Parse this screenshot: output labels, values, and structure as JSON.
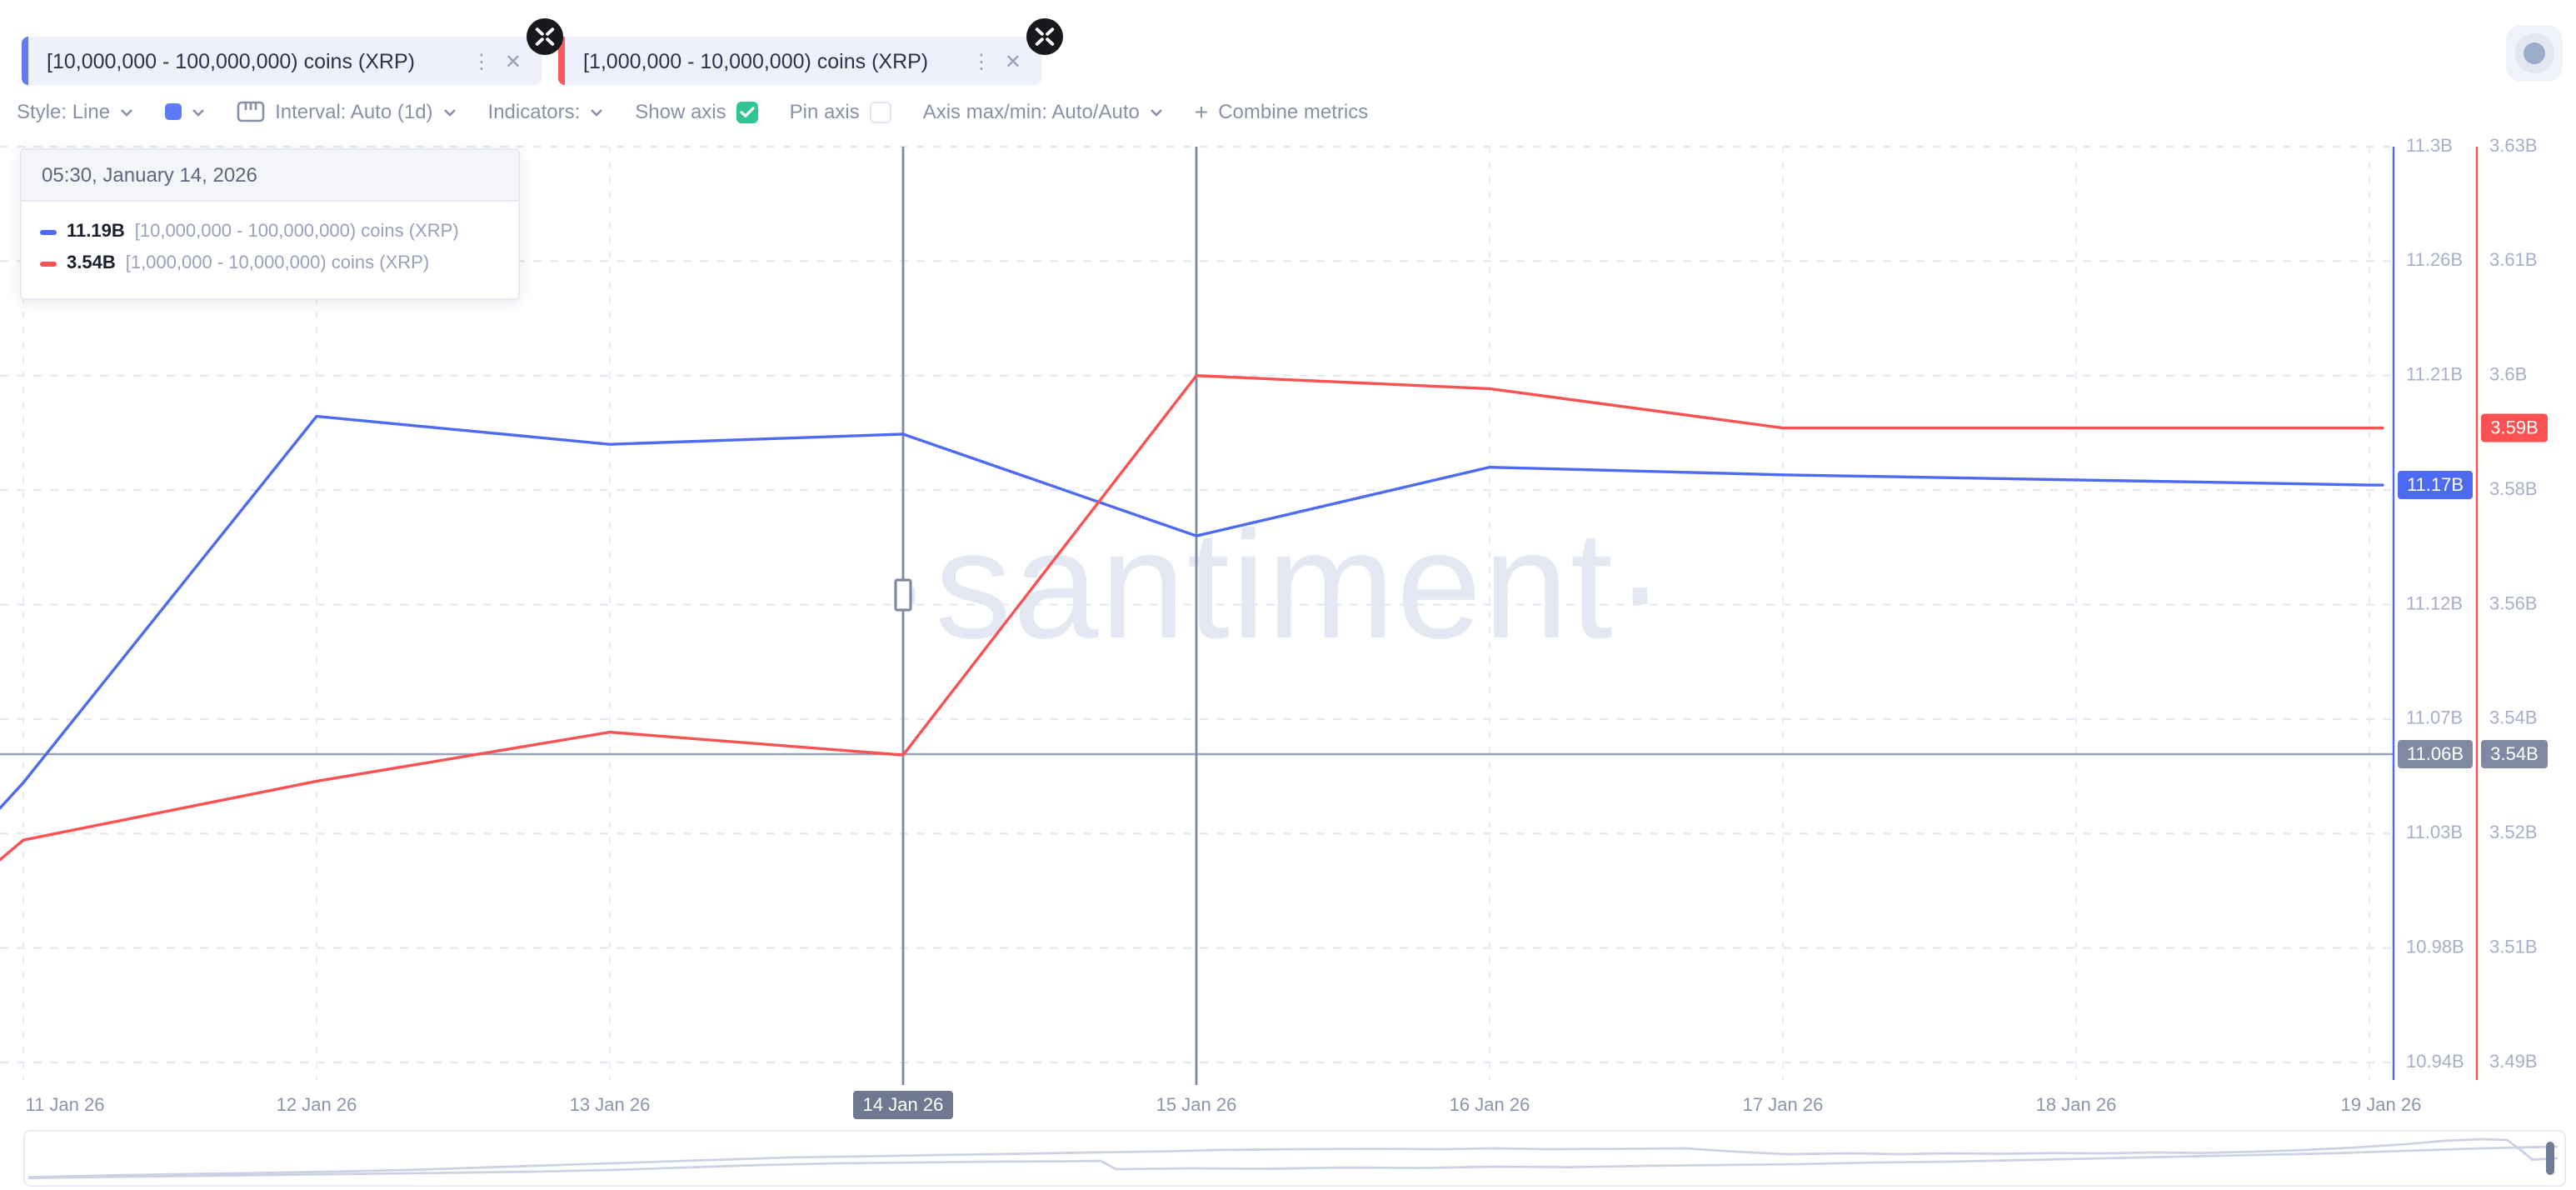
{
  "tabs": [
    {
      "label": "[10,000,000 - 100,000,000) coins (XRP)",
      "accent": "#5f7bf7"
    },
    {
      "label": "[1,000,000 - 10,000,000) coins (XRP)",
      "accent": "#fa5a5a"
    }
  ],
  "toolbar": {
    "style_label": "Style: Line",
    "interval_label": "Interval: Auto (1d)",
    "indicators_label": "Indicators:",
    "show_axis_label": "Show axis",
    "show_axis_checked": true,
    "pin_axis_label": "Pin axis",
    "pin_axis_checked": false,
    "axis_maxmin_label": "Axis max/min: Auto/Auto",
    "combine_label": "Combine metrics",
    "combine_plus": "+",
    "swatch_color": "#5f7bf7",
    "checkbox_on_color": "#2fc594"
  },
  "tooltip": {
    "header": "05:30, January 14, 2026",
    "rows": [
      {
        "value": "11.19B",
        "label": "[10,000,000 - 100,000,000) coins (XRP)",
        "color": "#4d6af2"
      },
      {
        "value": "3.54B",
        "label": "[1,000,000 - 10,000,000) coins (XRP)",
        "color": "#fa5252"
      }
    ]
  },
  "watermark_text": "·santiment·",
  "chart_data": {
    "type": "line",
    "title": "",
    "categories": [
      "11 Jan 26",
      "12 Jan 26",
      "13 Jan 26",
      "14 Jan 26",
      "15 Jan 26",
      "16 Jan 26",
      "17 Jan 26",
      "18 Jan 26",
      "19 Jan 26"
    ],
    "x_crosshair_index": 3,
    "x_secondary_line_index": 4,
    "crosshair_time_label": "14 Jan 26",
    "grid": true,
    "legend_position": "floating-tooltip",
    "series": [
      {
        "name": "[10,000,000 - 100,000,000) coins (XRP)",
        "color": "#4d6af2",
        "unit": "B coins",
        "lead_value": 11.04,
        "values": [
          11.05,
          11.194,
          11.183,
          11.187,
          11.147,
          11.174,
          11.171,
          11.169,
          11.167
        ],
        "axis": {
          "min": 10.94,
          "max": 11.3,
          "tick_labels": [
            "11.3B",
            "11.26B",
            "11.21B",
            "11.17B",
            "11.12B",
            "11.07B",
            "11.03B",
            "10.98B",
            "10.94B"
          ],
          "current_badge": "11.17B",
          "crosshair_badge": "11.06B"
        }
      },
      {
        "name": "[1,000,000 - 10,000,000) coins (XRP)",
        "color": "#fa5252",
        "unit": "B coins",
        "lead_value": 3.521,
        "values": [
          3.524,
          3.533,
          3.5405,
          3.537,
          3.595,
          3.593,
          3.587,
          3.587,
          3.587
        ],
        "axis": {
          "min": 3.49,
          "max": 3.63,
          "tick_labels": [
            "3.63B",
            "3.61B",
            "3.6B",
            "3.58B",
            "3.56B",
            "3.54B",
            "3.52B",
            "3.51B",
            "3.49B"
          ],
          "current_badge": "3.59B",
          "crosshair_badge": "3.54B"
        }
      }
    ],
    "style": {
      "grid_color": "#e4e9f3",
      "vgrid_color": "#e9edf6",
      "crosshair_line_color": "#7e89a6",
      "crosshair_hline_color": "#9aa3b8",
      "crosshair_badge_bg": "#7f8aa2",
      "axis_text_color": "#a6afc8",
      "x_text_color": "#8a94ab",
      "x_badge_bg": "#6e7890"
    }
  },
  "navigator": {
    "line_color": "#ccd2e3",
    "handle_color": "#6f7a95",
    "lines": [
      [
        [
          0,
          0.97
        ],
        [
          0.03,
          0.93
        ],
        [
          0.06,
          0.9
        ],
        [
          0.09,
          0.87
        ],
        [
          0.12,
          0.84
        ],
        [
          0.15,
          0.8
        ],
        [
          0.18,
          0.74
        ],
        [
          0.21,
          0.68
        ],
        [
          0.24,
          0.62
        ],
        [
          0.27,
          0.56
        ],
        [
          0.3,
          0.5
        ],
        [
          0.33,
          0.47
        ],
        [
          0.36,
          0.44
        ],
        [
          0.39,
          0.41
        ],
        [
          0.42,
          0.38
        ],
        [
          0.45,
          0.35
        ],
        [
          0.47,
          0.32
        ],
        [
          0.5,
          0.3
        ],
        [
          0.53,
          0.29
        ],
        [
          0.56,
          0.3
        ],
        [
          0.58,
          0.28
        ],
        [
          0.6,
          0.3
        ],
        [
          0.63,
          0.29
        ],
        [
          0.655,
          0.28
        ],
        [
          0.675,
          0.36
        ],
        [
          0.695,
          0.42
        ],
        [
          0.72,
          0.4
        ],
        [
          0.74,
          0.42
        ],
        [
          0.76,
          0.4
        ],
        [
          0.78,
          0.41
        ],
        [
          0.8,
          0.39
        ],
        [
          0.82,
          0.4
        ],
        [
          0.84,
          0.38
        ],
        [
          0.86,
          0.39
        ],
        [
          0.88,
          0.36
        ],
        [
          0.9,
          0.32
        ],
        [
          0.92,
          0.26
        ],
        [
          0.94,
          0.18
        ],
        [
          0.955,
          0.1
        ],
        [
          0.97,
          0.06
        ],
        [
          0.98,
          0.08
        ],
        [
          0.985,
          0.3
        ],
        [
          0.99,
          0.55
        ],
        [
          1,
          0.52
        ]
      ],
      [
        [
          0,
          0.99
        ],
        [
          0.04,
          0.96
        ],
        [
          0.08,
          0.93
        ],
        [
          0.12,
          0.9
        ],
        [
          0.16,
          0.87
        ],
        [
          0.2,
          0.84
        ],
        [
          0.23,
          0.8
        ],
        [
          0.26,
          0.74
        ],
        [
          0.29,
          0.68
        ],
        [
          0.32,
          0.64
        ],
        [
          0.35,
          0.62
        ],
        [
          0.38,
          0.6
        ],
        [
          0.41,
          0.59
        ],
        [
          0.424,
          0.58
        ],
        [
          0.43,
          0.78
        ],
        [
          0.46,
          0.76
        ],
        [
          0.49,
          0.77
        ],
        [
          0.52,
          0.74
        ],
        [
          0.55,
          0.75
        ],
        [
          0.58,
          0.72
        ],
        [
          0.61,
          0.73
        ],
        [
          0.64,
          0.7
        ],
        [
          0.67,
          0.68
        ],
        [
          0.7,
          0.66
        ],
        [
          0.73,
          0.62
        ],
        [
          0.76,
          0.6
        ],
        [
          0.79,
          0.56
        ],
        [
          0.82,
          0.52
        ],
        [
          0.85,
          0.48
        ],
        [
          0.88,
          0.44
        ],
        [
          0.91,
          0.4
        ],
        [
          0.94,
          0.34
        ],
        [
          0.97,
          0.28
        ],
        [
          1,
          0.24
        ]
      ]
    ]
  }
}
